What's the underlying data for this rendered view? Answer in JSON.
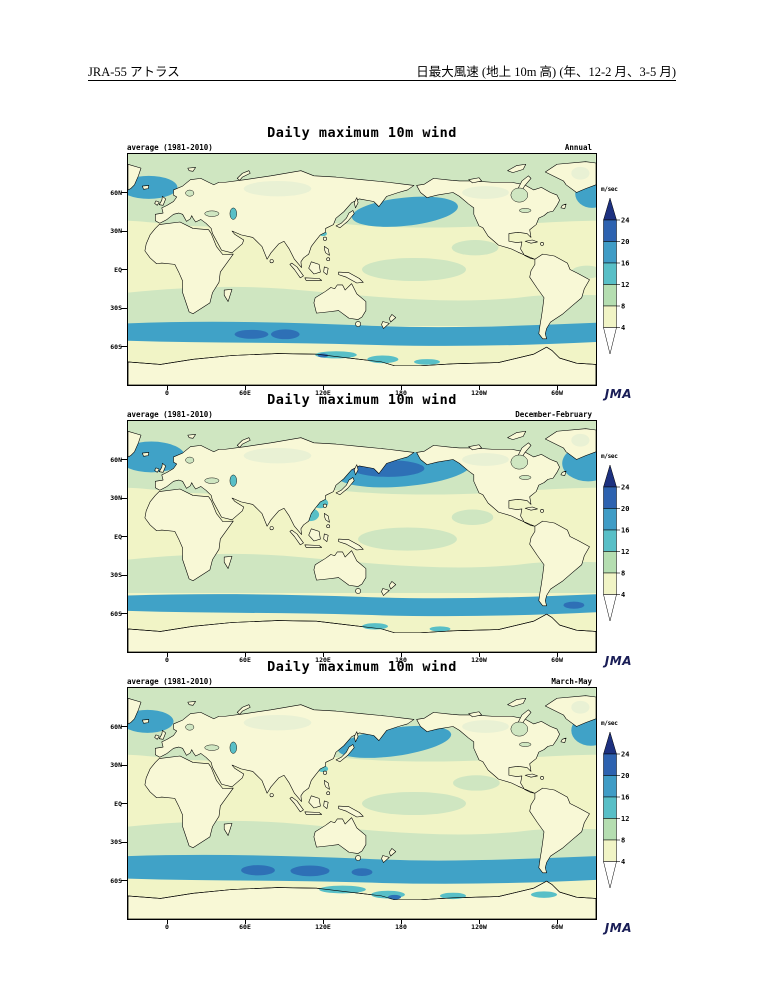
{
  "page": {
    "header_left": "JRA-55 アトラス",
    "header_right": "日最大風速 (地上 10m 高) (年、12-2 月、3-5 月)"
  },
  "panels": [
    {
      "title": "Daily maximum 10m wind",
      "stat_label": "average (1981-2010)",
      "period_label": "Annual",
      "logo": "JMA"
    },
    {
      "title": "Daily maximum 10m wind",
      "stat_label": "average (1981-2010)",
      "period_label": "December-February",
      "logo": "JMA"
    },
    {
      "title": "Daily maximum 10m wind",
      "stat_label": "average (1981-2010)",
      "period_label": "March-May",
      "logo": "JMA"
    }
  ],
  "axes": {
    "lat_ticks": [
      "60N",
      "30N",
      "EQ",
      "30S",
      "60S"
    ],
    "lon_ticks": [
      "0",
      "60E",
      "120E",
      "180",
      "120W",
      "60W"
    ]
  },
  "legend": {
    "unit": "m/sec",
    "tick_values": [
      24,
      20,
      16,
      12,
      8,
      4
    ],
    "colors": {
      "gt24": "#1d3180",
      "v20_24": "#2d62b0",
      "v16_20": "#3f9cc6",
      "v12_16": "#58bfc7",
      "v8_12": "#b5deb1",
      "v4_8": "#f1f4c6",
      "lt4": "#ffffff"
    }
  },
  "map_colors": {
    "land": "#f8f8d6",
    "land_tint": "#e9f1d4",
    "ocean_pale": "#f1f4c6",
    "ocean_green": "#cfe6c1",
    "teal": "#40a2c7",
    "cyan": "#58bfc7",
    "blue": "#2e70b6",
    "coastline": "#000000",
    "jma_logo": "#191d56"
  },
  "chart_data": [
    {
      "type": "heatmap",
      "title": "Daily maximum 10m wind",
      "statistic": "average (1981-2010)",
      "period": "Annual",
      "unit": "m/sec",
      "colorbar_ticks": [
        24,
        20,
        16,
        12,
        8,
        4
      ],
      "x_ticks": [
        "0",
        "60E",
        "120E",
        "180",
        "120W",
        "60W"
      ],
      "y_ticks": [
        "60N",
        "30N",
        "EQ",
        "30S",
        "60S"
      ],
      "notable_features": [
        "Southern Ocean storm-track band 45-60S: 16-20 m/sec, maxima 20-24 m/sec in south Indian Ocean sector",
        "North Pacific storm track 35-50N: 16-20 m/sec",
        "Norwegian Sea / North Atlantic 50-70N: 16-20 m/sec",
        "Mid-latitude oceans 8-12 m/sec; tropics, continental interiors and Antarctica mostly 4-8 m/sec"
      ]
    },
    {
      "type": "heatmap",
      "title": "Daily maximum 10m wind",
      "statistic": "average (1981-2010)",
      "period": "December-February",
      "unit": "m/sec",
      "colorbar_ticks": [
        24,
        20,
        16,
        12,
        8,
        4
      ],
      "x_ticks": [
        "0",
        "60E",
        "120E",
        "180",
        "120W",
        "60W"
      ],
      "y_ticks": [
        "60N",
        "30N",
        "EQ",
        "30S",
        "60S"
      ],
      "notable_features": [
        "Intense North Pacific storm track 30-55N: 16-20 m/sec with 20-24 m/sec core east of Japan",
        "North Atlantic 45-70N: 16-20 m/sec covering both map corners",
        "East Asian coastal seas (South China Sea) 12-16 m/sec winter monsoon",
        "Southern Ocean band 48-60S: 16-20 m/sec; tropics and land 4-8 m/sec"
      ]
    },
    {
      "type": "heatmap",
      "title": "Daily maximum 10m wind",
      "statistic": "average (1981-2010)",
      "period": "March-May",
      "unit": "m/sec",
      "colorbar_ticks": [
        24,
        20,
        16,
        12,
        8,
        4
      ],
      "x_ticks": [
        "0",
        "60E",
        "120E",
        "180",
        "120W",
        "60W"
      ],
      "y_ticks": [
        "60N",
        "30N",
        "EQ",
        "30S",
        "60S"
      ],
      "notable_features": [
        "Northwest Pacific storm track 35-50N: 16-20 m/sec",
        "North Atlantic edges 50-65N: 16-20 m/sec",
        "Wide Southern Ocean band 43-60S: 16-20 m/sec with 20-24 m/sec maxima at 60E-150E",
        "Teal 12-16 m/sec patches along Antarctic coast; tropics and land 4-8 m/sec"
      ]
    }
  ]
}
